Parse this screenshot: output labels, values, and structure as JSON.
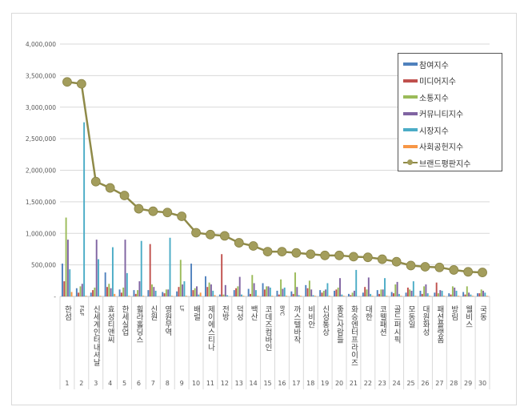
{
  "chart_data": {
    "type": "bar",
    "title": "",
    "xlabel": "",
    "ylabel": "",
    "ylim": [
      0,
      4000000
    ],
    "yticks": [
      "-",
      "500,000",
      "1,000,000",
      "1,500,000",
      "2,000,000",
      "2,500,000",
      "3,000,000",
      "3,500,000",
      "4,000,000"
    ],
    "grid": true,
    "legend_position": "top-right",
    "ranks": [
      "1",
      "2",
      "3",
      "4",
      "5",
      "6",
      "7",
      "8",
      "9",
      "10",
      "11",
      "12",
      "13",
      "14",
      "15",
      "16",
      "17",
      "18",
      "19",
      "20",
      "21",
      "22",
      "23",
      "24",
      "25",
      "26",
      "27",
      "28",
      "29",
      "30"
    ],
    "categories": [
      "한섬",
      "F&F",
      "신세계인터내셔날",
      "효성티앤씨",
      "한세실업",
      "휠라홀딩스",
      "신원",
      "영원무역",
      "LF",
      "배럴",
      "제이에스티나",
      "전방",
      "덕성",
      "백산",
      "코데즈컴바인",
      "BYC",
      "까스텔바작",
      "비비안",
      "신성통상",
      "좋은사람들",
      "화승엔터프라이즈",
      "대한",
      "코웰패션",
      "골드퍼시픽",
      "모동일",
      "대원화성",
      "패션플랫폼",
      "방림",
      "웰비스",
      "국동"
    ],
    "series": [
      {
        "name": "참여지수",
        "color": "#4f81bd",
        "type": "bar",
        "values": [
          520000,
          130000,
          60000,
          380000,
          110000,
          100000,
          100000,
          70000,
          80000,
          520000,
          320000,
          30000,
          100000,
          120000,
          210000,
          90000,
          80000,
          180000,
          100000,
          90000,
          40000,
          60000,
          100000,
          70000,
          60000,
          90000,
          60000,
          50000,
          70000,
          50000
        ]
      },
      {
        "name": "미디어지수",
        "color": "#c0504d",
        "type": "bar",
        "values": [
          240000,
          60000,
          100000,
          150000,
          60000,
          40000,
          830000,
          50000,
          150000,
          100000,
          150000,
          670000,
          130000,
          40000,
          110000,
          30000,
          40000,
          130000,
          60000,
          110000,
          20000,
          150000,
          40000,
          50000,
          140000,
          40000,
          220000,
          30000,
          30000,
          50000
        ]
      },
      {
        "name": "소통지수",
        "color": "#9bbb59",
        "type": "bar",
        "values": [
          1250000,
          160000,
          140000,
          200000,
          140000,
          100000,
          190000,
          110000,
          580000,
          130000,
          220000,
          30000,
          160000,
          340000,
          160000,
          270000,
          380000,
          250000,
          90000,
          140000,
          60000,
          110000,
          110000,
          190000,
          110000,
          160000,
          50000,
          160000,
          160000,
          110000
        ]
      },
      {
        "name": "커뮤니티지수",
        "color": "#8064a2",
        "type": "bar",
        "values": [
          900000,
          200000,
          900000,
          130000,
          900000,
          240000,
          150000,
          110000,
          190000,
          160000,
          190000,
          180000,
          310000,
          210000,
          160000,
          120000,
          150000,
          110000,
          110000,
          290000,
          90000,
          300000,
          110000,
          230000,
          90000,
          190000,
          100000,
          140000,
          60000,
          90000
        ]
      },
      {
        "name": "시장지수",
        "color": "#4bacc6",
        "type": "bar",
        "values": [
          430000,
          2760000,
          590000,
          780000,
          370000,
          880000,
          90000,
          930000,
          240000,
          30000,
          90000,
          20000,
          30000,
          100000,
          140000,
          140000,
          20000,
          20000,
          210000,
          30000,
          420000,
          40000,
          290000,
          40000,
          240000,
          50000,
          90000,
          90000,
          30000,
          60000
        ]
      },
      {
        "name": "사회공헌지수",
        "color": "#f79646",
        "type": "bar",
        "values": [
          70000,
          10000,
          10000,
          40000,
          10000,
          10000,
          0,
          10000,
          10000,
          60000,
          20000,
          0,
          10000,
          10000,
          10000,
          10000,
          10000,
          10000,
          10000,
          10000,
          0,
          10000,
          10000,
          10000,
          10000,
          10000,
          10000,
          10000,
          10000,
          10000
        ]
      },
      {
        "name": "브랜드평판지수",
        "color": "#9c9652",
        "type": "line",
        "values": [
          3400000,
          3370000,
          1820000,
          1720000,
          1600000,
          1390000,
          1350000,
          1330000,
          1270000,
          1010000,
          980000,
          960000,
          850000,
          800000,
          710000,
          710000,
          690000,
          670000,
          650000,
          650000,
          630000,
          620000,
          590000,
          550000,
          490000,
          470000,
          460000,
          420000,
          390000,
          380000
        ]
      }
    ]
  }
}
